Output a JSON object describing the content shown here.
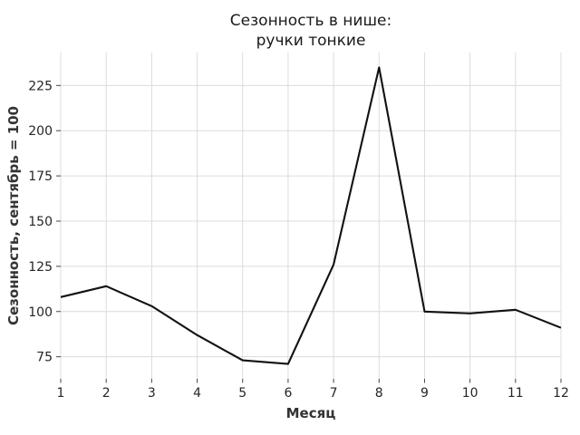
{
  "chart_data": {
    "type": "line",
    "title": "Сезонность в нише: ручки тонкие",
    "title_lines": [
      "Сезонность в нише:",
      "ручки тонкие"
    ],
    "xlabel": "Месяц",
    "ylabel": "Сезонность, сентябрь = 100",
    "x": [
      1,
      2,
      3,
      4,
      5,
      6,
      7,
      8,
      9,
      10,
      11,
      12
    ],
    "values": [
      108,
      114,
      103,
      87,
      73,
      71,
      126,
      235,
      100,
      99,
      101,
      91
    ],
    "xticks": [
      1,
      2,
      3,
      4,
      5,
      6,
      7,
      8,
      9,
      10,
      11,
      12
    ],
    "yticks": [
      75,
      100,
      125,
      150,
      175,
      200,
      225
    ],
    "xlim": [
      1,
      12
    ],
    "ylim": [
      62.8,
      243.2
    ],
    "grid": true,
    "legend": "none",
    "colors": {
      "line": "#111111",
      "grid": "#dcdcdc",
      "tick_mark": "#444444",
      "tick_text": "#262626",
      "title_text": "#1a1a1a",
      "axis_label_text": "#333333",
      "background": "#ffffff"
    }
  }
}
